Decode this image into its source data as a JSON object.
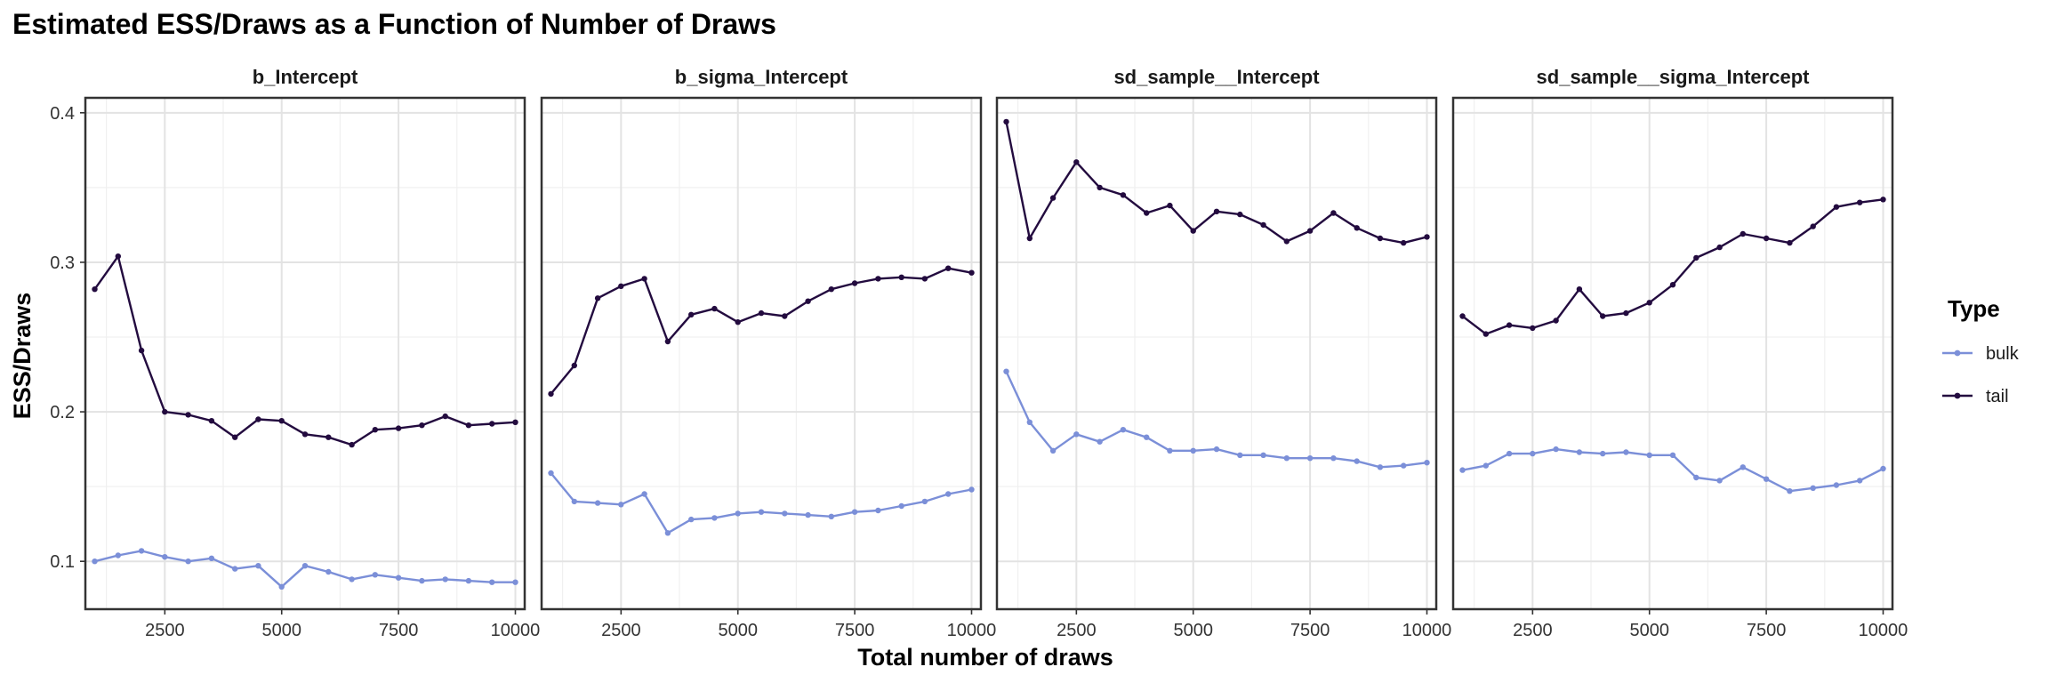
{
  "chart_data": {
    "type": "line",
    "title": "Estimated ESS/Draws as a Function of Number of Draws",
    "xlabel": "Total number of draws",
    "ylabel": "ESS/Draws",
    "xlim": [
      800,
      10200
    ],
    "ylim": [
      0.068,
      0.41
    ],
    "x_ticks": [
      2500,
      5000,
      7500,
      10000
    ],
    "x_tick_labels": [
      "2500",
      "5000",
      "7500",
      "10000"
    ],
    "y_ticks": [
      0.1,
      0.2,
      0.3,
      0.4
    ],
    "y_tick_labels": [
      "0.1",
      "0.2",
      "0.3",
      "0.4"
    ],
    "grid": true,
    "x": [
      1000,
      1500,
      2000,
      2500,
      3000,
      3500,
      4000,
      4500,
      5000,
      5500,
      6000,
      6500,
      7000,
      7500,
      8000,
      8500,
      9000,
      9500,
      10000
    ],
    "legend": {
      "title": "Type",
      "position": "right",
      "entries": [
        {
          "label": "bulk",
          "color": "#7b8fd8"
        },
        {
          "label": "tail",
          "color": "#230b3f"
        }
      ]
    },
    "panels": [
      {
        "title": "b_Intercept",
        "series": [
          {
            "name": "bulk",
            "values": [
              0.1,
              0.104,
              0.107,
              0.103,
              0.1,
              0.102,
              0.095,
              0.097,
              0.083,
              0.097,
              0.093,
              0.088,
              0.091,
              0.089,
              0.087,
              0.088,
              0.087,
              0.086,
              0.086
            ]
          },
          {
            "name": "tail",
            "values": [
              0.282,
              0.304,
              0.241,
              0.2,
              0.198,
              0.194,
              0.183,
              0.195,
              0.194,
              0.185,
              0.183,
              0.178,
              0.188,
              0.189,
              0.191,
              0.197,
              0.191,
              0.192,
              0.193
            ]
          }
        ]
      },
      {
        "title": "b_sigma_Intercept",
        "series": [
          {
            "name": "bulk",
            "values": [
              0.159,
              0.14,
              0.139,
              0.138,
              0.145,
              0.119,
              0.128,
              0.129,
              0.132,
              0.133,
              0.132,
              0.131,
              0.13,
              0.133,
              0.134,
              0.137,
              0.14,
              0.145,
              0.148
            ]
          },
          {
            "name": "tail",
            "values": [
              0.212,
              0.231,
              0.276,
              0.284,
              0.289,
              0.247,
              0.265,
              0.269,
              0.26,
              0.266,
              0.264,
              0.274,
              0.282,
              0.286,
              0.289,
              0.29,
              0.289,
              0.296,
              0.293
            ]
          }
        ]
      },
      {
        "title": "sd_sample__Intercept",
        "series": [
          {
            "name": "bulk",
            "values": [
              0.227,
              0.193,
              0.174,
              0.185,
              0.18,
              0.188,
              0.183,
              0.174,
              0.174,
              0.175,
              0.171,
              0.171,
              0.169,
              0.169,
              0.169,
              0.167,
              0.163,
              0.164,
              0.166
            ]
          },
          {
            "name": "tail",
            "values": [
              0.394,
              0.316,
              0.343,
              0.367,
              0.35,
              0.345,
              0.333,
              0.338,
              0.321,
              0.334,
              0.332,
              0.325,
              0.314,
              0.321,
              0.333,
              0.323,
              0.316,
              0.313,
              0.317
            ]
          }
        ]
      },
      {
        "title": "sd_sample__sigma_Intercept",
        "series": [
          {
            "name": "bulk",
            "values": [
              0.161,
              0.164,
              0.172,
              0.172,
              0.175,
              0.173,
              0.172,
              0.173,
              0.171,
              0.171,
              0.156,
              0.154,
              0.163,
              0.155,
              0.147,
              0.149,
              0.151,
              0.154,
              0.162
            ]
          },
          {
            "name": "tail",
            "values": [
              0.264,
              0.252,
              0.258,
              0.256,
              0.261,
              0.282,
              0.264,
              0.266,
              0.273,
              0.285,
              0.303,
              0.31,
              0.319,
              0.316,
              0.313,
              0.324,
              0.337,
              0.34,
              0.342
            ]
          }
        ]
      }
    ]
  }
}
